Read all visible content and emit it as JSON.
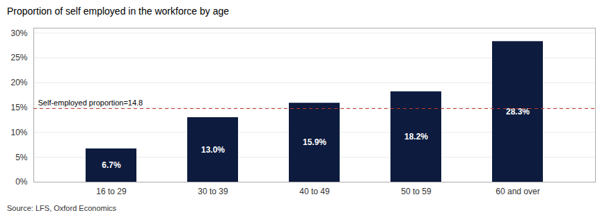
{
  "chart_data": {
    "type": "bar",
    "title": "Proportion of self employed in the workforce by age",
    "categories": [
      "16 to 29",
      "30 to 39",
      "40 to 49",
      "50 to 59",
      "60 and over"
    ],
    "values": [
      6.7,
      13.0,
      15.9,
      18.2,
      28.3
    ],
    "value_labels": [
      "6.7%",
      "13.0%",
      "15.9%",
      "18.2%",
      "28.3%"
    ],
    "data_labels": true,
    "color": "#0d1b3e",
    "ylim": [
      0,
      31
    ],
    "yticks": [
      {
        "value": 0,
        "label": "0%"
      },
      {
        "value": 5,
        "label": "5%"
      },
      {
        "value": 10,
        "label": "10%"
      },
      {
        "value": 15,
        "label": "15%"
      },
      {
        "value": 20,
        "label": "20%"
      },
      {
        "value": 25,
        "label": "25%"
      },
      {
        "value": 30,
        "label": "30%"
      }
    ],
    "grid": true,
    "annotations": [
      {
        "type": "hline",
        "y": 14.8,
        "text": "Self-employed proportion=14.8",
        "color": "#c0392b",
        "line_style": "dashed"
      }
    ],
    "source": "Source: LFS, Oxford Economics"
  }
}
